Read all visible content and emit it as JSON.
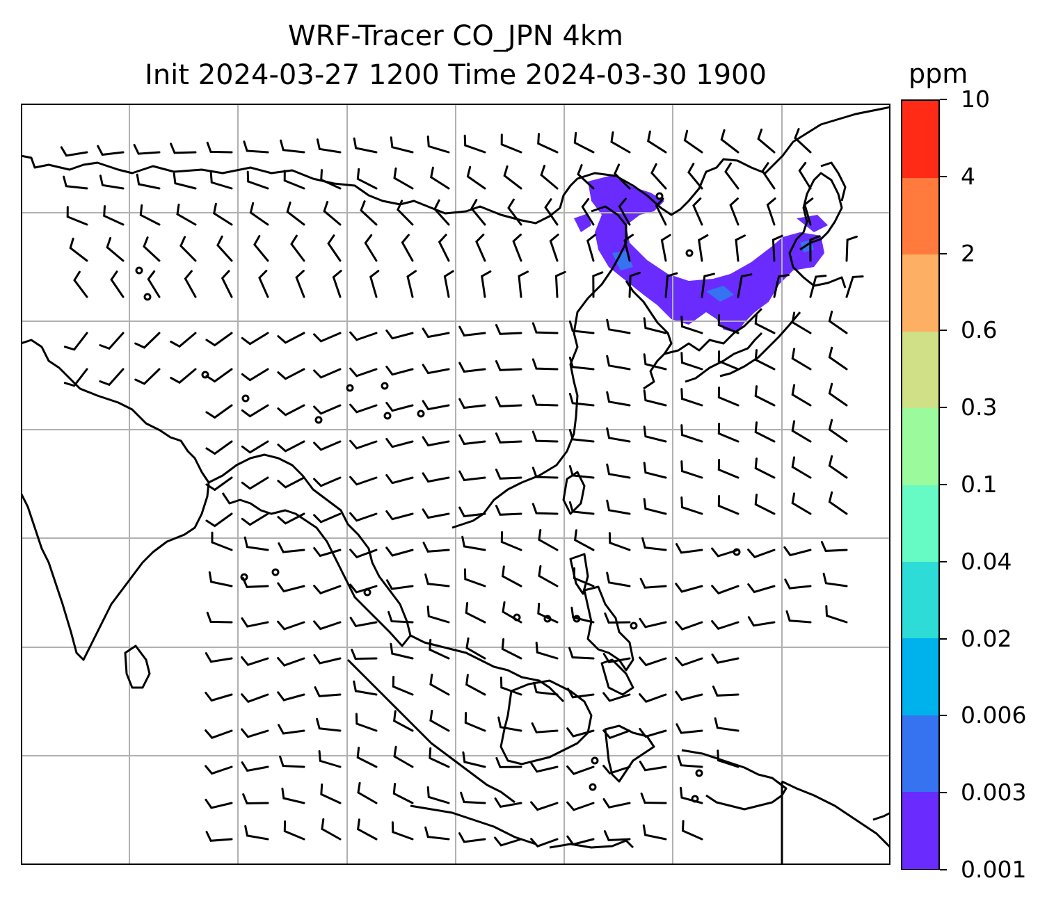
{
  "title": {
    "line1": "WRF-Tracer CO_JPN 4km",
    "line2": "Init 2024-03-27 1200 Time 2024-03-30 1900"
  },
  "colorbar": {
    "unit": "ppm",
    "ticks": [
      "0.001",
      "0.003",
      "0.006",
      "0.02",
      "0.04",
      "0.1",
      "0.3",
      "0.6",
      "2",
      "4",
      "10"
    ],
    "colors": [
      "#6a2bff",
      "#3673f0",
      "#00b2eb",
      "#2ddcd6",
      "#66fbc4",
      "#9afa9c",
      "#cfe087",
      "#fdb064",
      "#ff7a3c",
      "#ff2b17"
    ]
  },
  "map": {
    "grid": "on",
    "coastline_color": "#000000",
    "gridline_color": "#b0b0b0",
    "plume_color": "#6a2bff",
    "plume_secondary_color": "#3673f0",
    "feature": "Tracer plume over Northeast Asia; wind barbs across East and Southeast Asia"
  }
}
